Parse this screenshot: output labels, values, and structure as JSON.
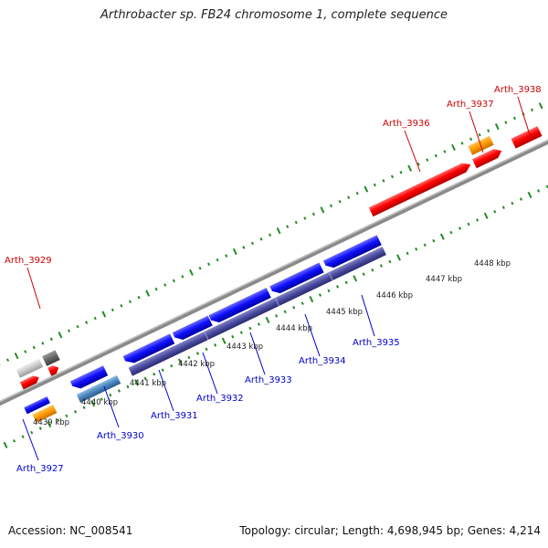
{
  "title": "Arthrobacter sp. FB24 chromosome 1, complete sequence",
  "footer": {
    "accession": "Accession: NC_008541",
    "summary": "Topology: circular; Length: 4,698,945 bp; Genes: 4,214"
  },
  "colors": {
    "backbone": "#8c8c8c",
    "forward_gene": "#ff0000",
    "reverse_gene": "#0000ff",
    "operon": "#3c3c8c",
    "ruler": "#228b22",
    "forward_label": "#cc0000",
    "reverse_label": "#0000cc"
  },
  "scale_labels": [
    "4439 kbp",
    "4440 kbp",
    "4441 kbp",
    "4442 kbp",
    "4443 kbp",
    "4444 kbp",
    "4445 kbp",
    "4446 kbp",
    "4447 kbp",
    "4448 kbp"
  ],
  "gene_labels_forward": [
    "Arth_3929",
    "Arth_3936",
    "Arth_3937",
    "Arth_3938"
  ],
  "gene_labels_reverse": [
    "Arth_3927",
    "Arth_3930",
    "Arth_3931",
    "Arth_3932",
    "Arth_3933",
    "Arth_3934",
    "Arth_3935"
  ]
}
